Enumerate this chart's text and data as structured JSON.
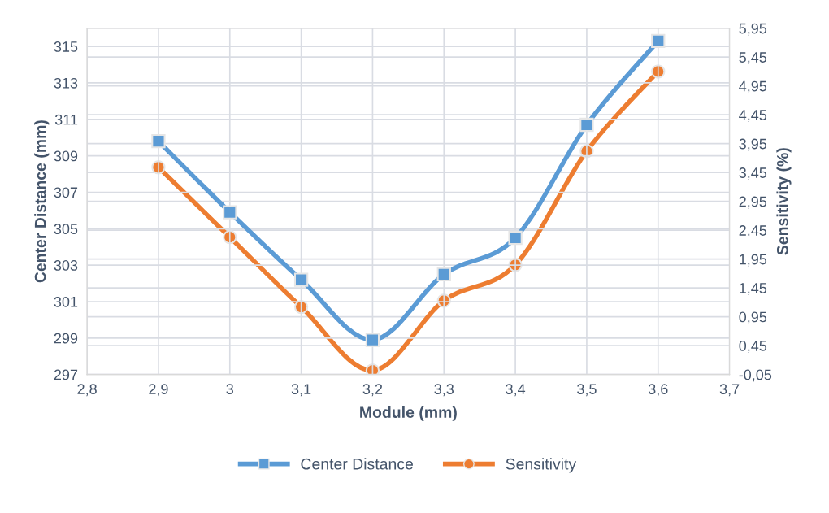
{
  "chart_data": {
    "type": "line",
    "xlabel": "Module (mm)",
    "ylabel": "Center Distance (mm)",
    "y2label": "Sensitivity (%)",
    "x": [
      2.9,
      3.0,
      3.1,
      3.2,
      3.3,
      3.4,
      3.5,
      3.6
    ],
    "series": [
      {
        "name": "Center Distance",
        "color": "#5b9bd5",
        "marker": "square",
        "values": [
          309.8,
          305.9,
          302.2,
          298.9,
          302.5,
          304.5,
          310.7,
          315.3
        ]
      },
      {
        "name": "Sensitivity",
        "color": "#ed7d31",
        "marker": "circle",
        "axis": "y2",
        "values": [
          3.54,
          2.33,
          1.12,
          0.02,
          1.23,
          1.85,
          3.82,
          5.2
        ]
      }
    ],
    "xlim": [
      2.8,
      3.7
    ],
    "xticks": [
      {
        "value": 2.8,
        "label": "2,8"
      },
      3,
      {
        "value": 2.9,
        "label": "2,9"
      },
      {
        "value": 3.1,
        "label": "3,1"
      },
      {
        "value": 3.2,
        "label": "3,2"
      },
      {
        "value": 3.3,
        "label": "3,3"
      },
      {
        "value": 3.4,
        "label": "3,4"
      },
      {
        "value": 3.5,
        "label": "3,5"
      },
      {
        "value": 3.6,
        "label": "3,6"
      },
      {
        "value": 3.7,
        "label": "3,7"
      }
    ],
    "ylim": [
      297,
      316
    ],
    "yticks": [
      297,
      299,
      301,
      303,
      305,
      307,
      309,
      311,
      313,
      315
    ],
    "y2lim": [
      -0.05,
      5.95
    ],
    "y2ticks": [
      {
        "value": -0.05,
        "label": "-0,05"
      },
      {
        "value": 0.45,
        "label": "0,45"
      },
      {
        "value": 0.95,
        "label": "0,95"
      },
      {
        "value": 1.45,
        "label": "1,45"
      },
      {
        "value": 1.95,
        "label": "1,95"
      },
      {
        "value": 2.45,
        "label": "2,45"
      },
      {
        "value": 2.95,
        "label": "2,95"
      },
      {
        "value": 3.45,
        "label": "3,45"
      },
      {
        "value": 3.95,
        "label": "3,95"
      },
      {
        "value": 4.45,
        "label": "4,45"
      },
      {
        "value": 4.95,
        "label": "4,95"
      },
      {
        "value": 5.45,
        "label": "5,45"
      },
      {
        "value": 5.95,
        "label": "5,95"
      }
    ],
    "grid": true,
    "legend": "bottom",
    "line_style": "solid"
  }
}
